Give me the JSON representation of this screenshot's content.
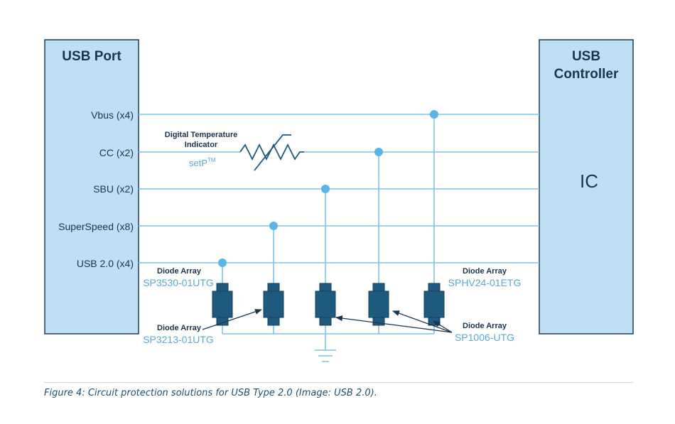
{
  "usb_port": {
    "title": "USB Port",
    "signals": [
      "Vbus (x4)",
      "CC (x2)",
      "SBU (x2)",
      "SuperSpeed (x8)",
      "USB 2.0 (x4)"
    ]
  },
  "usb_controller": {
    "title_line1": "USB",
    "title_line2": "Controller",
    "ic_label": "IC"
  },
  "temperature_indicator": {
    "label_line1": "Digital Temperature",
    "label_line2": "Indicator",
    "part_number": "setP",
    "trademark": "TM"
  },
  "components": [
    {
      "label": "Diode Array",
      "part": "SP3530-01UTG"
    },
    {
      "label": "Diode Array",
      "part": "SP3213-01UTG"
    },
    {
      "label": "Diode Array",
      "part": "SPHV24-01ETG"
    },
    {
      "label": "Diode Array",
      "part": "SP1006-UTG"
    }
  ],
  "caption": "Figure 4: Circuit protection solutions for USB Type 2.0 (Image: USB 2.0).",
  "colors": {
    "box_fill": "#bfe0f4",
    "box_stroke": "#1a3d5c",
    "line": "#7fc3ea",
    "node": "#5ab4e5",
    "diode": "#1e5a7e",
    "dark_text": "#1a3550",
    "light_text": "#5aa9d6"
  }
}
